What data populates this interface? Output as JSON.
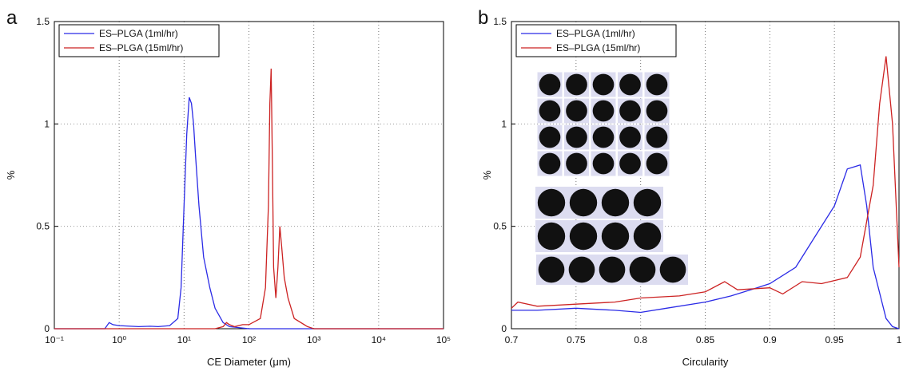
{
  "chart_data": [
    {
      "type": "line",
      "panel_label": "a",
      "xlabel": "CE Diameter (μm)",
      "ylabel": "%",
      "xscale": "log",
      "xlim": [
        0.1,
        100000
      ],
      "ylim": [
        0,
        1.5
      ],
      "xticks": [
        {
          "value": 0.1,
          "label": "10⁻¹"
        },
        {
          "value": 1,
          "label": "10⁰"
        },
        {
          "value": 10,
          "label": "10¹"
        },
        {
          "value": 100,
          "label": "10²"
        },
        {
          "value": 1000,
          "label": "10³"
        },
        {
          "value": 10000,
          "label": "10⁴"
        },
        {
          "value": 100000,
          "label": "10⁵"
        }
      ],
      "yticks": [
        0,
        0.5,
        1,
        1.5
      ],
      "grid": true,
      "legend": "upper left",
      "series": [
        {
          "name": "ES–PLGA (1ml/hr)",
          "color": "#2b2be6",
          "x": [
            0.1,
            0.6,
            0.7,
            0.8,
            1,
            1.5,
            2,
            3,
            4,
            6,
            8,
            9,
            10,
            11,
            12,
            13,
            14,
            15,
            17,
            20,
            25,
            30,
            40,
            50,
            100,
            1000,
            100000
          ],
          "values": [
            0,
            0,
            0.03,
            0.02,
            0.015,
            0.012,
            0.01,
            0.012,
            0.01,
            0.015,
            0.05,
            0.2,
            0.6,
            0.95,
            1.13,
            1.1,
            1.0,
            0.85,
            0.6,
            0.35,
            0.2,
            0.1,
            0.03,
            0.01,
            0,
            0,
            0
          ]
        },
        {
          "name": "ES–PLGA (15ml/hr)",
          "color": "#cc2222",
          "x": [
            0.1,
            30,
            40,
            45,
            50,
            60,
            80,
            100,
            150,
            180,
            200,
            210,
            220,
            230,
            240,
            260,
            280,
            300,
            320,
            350,
            400,
            500,
            800,
            1000,
            100000
          ],
          "values": [
            0,
            0,
            0.01,
            0.03,
            0.02,
            0.01,
            0.02,
            0.02,
            0.05,
            0.2,
            0.6,
            1.1,
            1.27,
            0.8,
            0.3,
            0.15,
            0.3,
            0.5,
            0.4,
            0.25,
            0.15,
            0.05,
            0.01,
            0,
            0
          ]
        }
      ]
    },
    {
      "type": "line",
      "panel_label": "b",
      "xlabel": "Circularity",
      "ylabel": "%",
      "xlim": [
        0.7,
        1
      ],
      "ylim": [
        0,
        1.5
      ],
      "xticks": [
        0.7,
        0.75,
        0.8,
        0.85,
        0.9,
        0.95,
        1
      ],
      "yticks": [
        0,
        0.5,
        1,
        1.5
      ],
      "grid": true,
      "legend": "upper left",
      "series": [
        {
          "name": "ES–PLGA (1ml/hr)",
          "color": "#2b2be6",
          "x": [
            0.7,
            0.72,
            0.75,
            0.78,
            0.8,
            0.82,
            0.85,
            0.87,
            0.89,
            0.9,
            0.92,
            0.935,
            0.95,
            0.96,
            0.97,
            0.975,
            0.98,
            0.99,
            0.995,
            1
          ],
          "values": [
            0.09,
            0.09,
            0.1,
            0.09,
            0.08,
            0.1,
            0.13,
            0.16,
            0.2,
            0.22,
            0.3,
            0.45,
            0.6,
            0.78,
            0.8,
            0.6,
            0.3,
            0.05,
            0.01,
            0
          ]
        },
        {
          "name": "ES–PLGA (15ml/hr)",
          "color": "#cc2222",
          "x": [
            0.7,
            0.705,
            0.72,
            0.75,
            0.78,
            0.8,
            0.83,
            0.85,
            0.865,
            0.875,
            0.9,
            0.91,
            0.925,
            0.94,
            0.96,
            0.97,
            0.98,
            0.985,
            0.99,
            0.995,
            1
          ],
          "values": [
            0.1,
            0.13,
            0.11,
            0.12,
            0.13,
            0.15,
            0.16,
            0.18,
            0.23,
            0.19,
            0.2,
            0.17,
            0.23,
            0.22,
            0.25,
            0.35,
            0.7,
            1.1,
            1.33,
            1.0,
            0.3
          ]
        }
      ]
    }
  ]
}
